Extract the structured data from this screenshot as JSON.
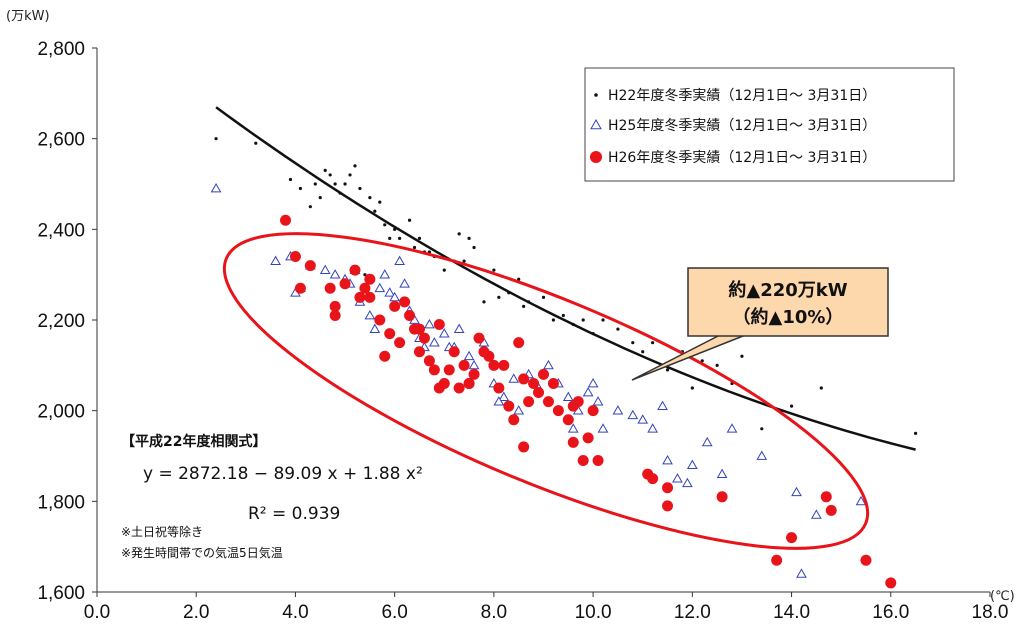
{
  "chart_data": {
    "type": "scatter",
    "xlabel": "",
    "ylabel": "",
    "x_unit": "(℃)",
    "y_unit": "(万kW)",
    "xlim": [
      0,
      18
    ],
    "ylim": [
      1600,
      2800
    ],
    "x_ticks": [
      "0.0",
      "2.0",
      "4.0",
      "6.0",
      "8.0",
      "10.0",
      "12.0",
      "14.0",
      "16.0",
      "18.0"
    ],
    "y_ticks": [
      "1,600",
      "1,800",
      "2,000",
      "2,200",
      "2,400",
      "2,600",
      "2,800"
    ],
    "grid": false,
    "legend_position": "top-right",
    "legend_entries": [
      "H22年度冬季実績（12月1日～ 3月31日）",
      "H25年度冬季実績（12月1日～ 3月31日）",
      "H26年度冬季実績（12月1日～ 3月31日）"
    ],
    "legend_colors": [
      "#111111",
      "#3344bb",
      "#e8141a"
    ],
    "series": [
      {
        "name": "H22年度冬季実績（12月1日～ 3月31日）",
        "marker": "dot",
        "color": "#111111",
        "x": [
          2.4,
          3.2,
          3.9,
          4.1,
          4.3,
          4.5,
          4.6,
          4.7,
          4.8,
          4.9,
          5.0,
          5.1,
          5.2,
          5.3,
          5.5,
          5.6,
          5.7,
          5.8,
          6.0,
          6.1,
          6.3,
          6.4,
          6.5,
          6.6,
          6.8,
          7.0,
          7.2,
          7.3,
          7.5,
          7.6,
          7.8,
          8.0,
          8.1,
          8.3,
          8.5,
          8.7,
          9.0,
          9.2,
          9.4,
          9.6,
          9.8,
          10.0,
          10.2,
          10.5,
          10.8,
          11.0,
          11.2,
          11.5,
          11.8,
          12.0,
          12.2,
          12.5,
          12.8,
          13.0,
          13.4,
          14.0,
          14.6,
          16.5,
          5.9,
          6.7,
          7.4,
          8.6,
          4.4,
          5.4
        ],
        "y": [
          2600,
          2590,
          2510,
          2490,
          2450,
          2470,
          2530,
          2520,
          2500,
          2480,
          2500,
          2520,
          2540,
          2490,
          2470,
          2440,
          2460,
          2410,
          2400,
          2380,
          2420,
          2360,
          2380,
          2350,
          2340,
          2310,
          2330,
          2390,
          2380,
          2360,
          2240,
          2310,
          2250,
          2260,
          2290,
          2240,
          2250,
          2200,
          2210,
          2190,
          2200,
          2170,
          2200,
          2180,
          2150,
          2130,
          2150,
          2090,
          2130,
          2050,
          2110,
          2100,
          2060,
          2120,
          1960,
          2010,
          2050,
          1950,
          2380,
          2350,
          2330,
          2230,
          2500,
          2300
        ]
      },
      {
        "name": "H25年度冬季実績（12月1日～ 3月31日）",
        "marker": "triangle",
        "color": "#3344bb",
        "x": [
          2.4,
          3.6,
          3.9,
          4.1,
          4.3,
          4.6,
          4.8,
          5.0,
          5.1,
          5.3,
          5.5,
          5.6,
          5.7,
          5.8,
          5.9,
          6.0,
          6.2,
          6.3,
          6.4,
          6.5,
          6.7,
          6.8,
          7.0,
          7.2,
          7.3,
          7.5,
          7.6,
          7.8,
          8.0,
          8.2,
          8.4,
          8.5,
          8.7,
          8.9,
          9.1,
          9.3,
          9.5,
          9.7,
          9.9,
          10.0,
          10.1,
          10.2,
          10.5,
          10.8,
          11.0,
          11.2,
          11.4,
          11.5,
          11.7,
          12.0,
          12.3,
          12.6,
          12.8,
          13.4,
          14.1,
          14.5,
          15.4,
          5.4,
          6.1,
          7.1,
          8.1,
          9.6,
          11.9,
          14.2,
          4.0,
          5.2,
          6.6
        ],
        "y": [
          2490,
          2330,
          2340,
          2270,
          2320,
          2310,
          2300,
          2290,
          2280,
          2240,
          2210,
          2180,
          2270,
          2300,
          2260,
          2250,
          2280,
          2220,
          2200,
          2160,
          2190,
          2150,
          2170,
          2140,
          2180,
          2120,
          2100,
          2150,
          2060,
          2030,
          2070,
          2000,
          2080,
          2050,
          2100,
          2060,
          2030,
          2000,
          2040,
          2060,
          2020,
          1960,
          2000,
          1990,
          1980,
          1960,
          2010,
          1890,
          1850,
          1880,
          1930,
          1860,
          1960,
          1900,
          1820,
          1770,
          1800,
          2260,
          2330,
          2140,
          2020,
          1960,
          1840,
          1640,
          2260,
          2310,
          2140
        ]
      },
      {
        "name": "H26年度冬季実績（12月1日～ 3月31日）",
        "marker": "circle",
        "color": "#e8141a",
        "x": [
          3.8,
          4.0,
          4.1,
          4.3,
          4.7,
          4.8,
          5.0,
          5.2,
          5.3,
          5.4,
          5.5,
          5.7,
          5.8,
          5.9,
          6.0,
          6.1,
          6.2,
          6.3,
          6.4,
          6.5,
          6.6,
          6.7,
          6.8,
          6.9,
          7.0,
          7.1,
          7.2,
          7.3,
          7.4,
          7.5,
          7.6,
          7.7,
          7.8,
          7.9,
          8.0,
          8.1,
          8.2,
          8.3,
          8.4,
          8.5,
          8.6,
          8.7,
          8.8,
          8.9,
          9.0,
          9.1,
          9.2,
          9.3,
          9.5,
          9.6,
          9.7,
          9.8,
          9.9,
          10.0,
          10.1,
          11.1,
          11.2,
          11.5,
          11.5,
          12.6,
          14.0,
          14.7,
          14.8,
          15.5,
          16.0,
          13.7,
          4.8,
          6.5,
          7.5,
          8.6,
          5.5,
          6.9,
          9.6
        ],
        "y": [
          2420,
          2340,
          2270,
          2320,
          2270,
          2230,
          2280,
          2310,
          2250,
          2270,
          2290,
          2200,
          2120,
          2170,
          2230,
          2150,
          2240,
          2210,
          2180,
          2130,
          2160,
          2110,
          2090,
          2190,
          2060,
          2090,
          2130,
          2050,
          2100,
          2060,
          2080,
          2160,
          2130,
          2120,
          2100,
          2050,
          2100,
          2010,
          1980,
          2150,
          2070,
          2020,
          2060,
          2040,
          2080,
          2020,
          2060,
          2000,
          1980,
          1930,
          2020,
          1890,
          1940,
          2000,
          1890,
          1860,
          1850,
          1830,
          1790,
          1810,
          1720,
          1810,
          1780,
          1670,
          1620,
          1670,
          2210,
          2180,
          2060,
          1920,
          2250,
          2050,
          2010
        ]
      }
    ],
    "trendline": {
      "series": "H22年度冬季実績（12月1日～ 3月31日）",
      "equation_title": "【平成22年度相関式】",
      "equation": "y = 2872.18 − 89.09 x + 1.88 x²",
      "r_squared": "R² = 0.939",
      "coefficients": [
        2872.18,
        -89.09,
        1.88
      ],
      "x_range": [
        2.4,
        16.5
      ]
    },
    "callout": {
      "line1": "約▲220万kW",
      "line2": "（約▲10%）",
      "fill_color": "#fdd8ad"
    },
    "notes": [
      "※土日祝等除き",
      "※発生時間帯での気温5日気温"
    ],
    "ellipse_color": "#e8141a"
  }
}
